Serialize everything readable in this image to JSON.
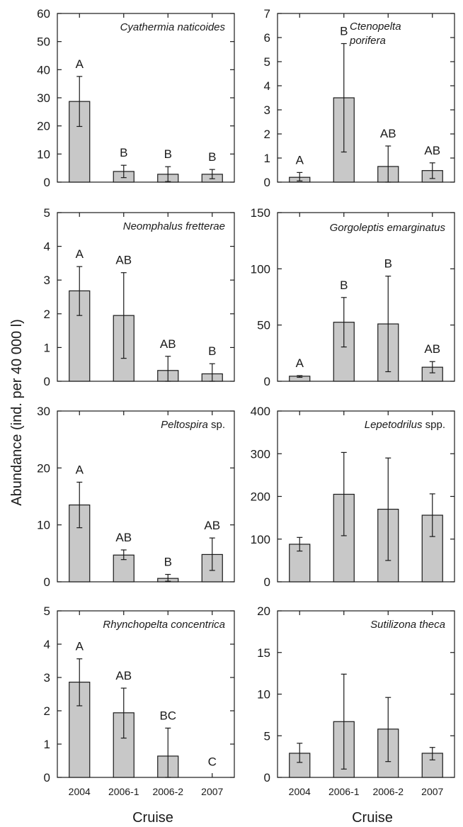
{
  "figure": {
    "ylabel": "Abundance (ind. per 40 000 l)",
    "xlabel": "Cruise"
  },
  "colors": {
    "bar_fill": "#c8c8c8",
    "stroke": "#1a1a1a"
  },
  "chart_data": [
    {
      "type": "bar",
      "title": "Cyathermia naticoides",
      "title_parts": [
        {
          "text": "Cyathermia naticoides",
          "italic": true
        }
      ],
      "categories": [
        "2004",
        "2006-1",
        "2006-2",
        "2007"
      ],
      "values": [
        28.7,
        3.8,
        2.8,
        2.8
      ],
      "err_low": [
        19.8,
        1.6,
        0.2,
        1.2
      ],
      "err_high": [
        37.6,
        6.0,
        5.5,
        4.5
      ],
      "sig_letters": [
        "A",
        "B",
        "B",
        "B"
      ],
      "ylim": [
        0,
        60
      ],
      "yticks": [
        0,
        10,
        20,
        30,
        40,
        50,
        60
      ]
    },
    {
      "type": "bar",
      "title": "Ctenopelta porifera",
      "title_parts": [
        {
          "text": "Ctenopelta",
          "italic": true
        },
        {
          "text": "porifera",
          "italic": true
        }
      ],
      "categories": [
        "2004",
        "2006-1",
        "2006-2",
        "2007"
      ],
      "values": [
        0.2,
        3.5,
        0.65,
        0.48
      ],
      "err_low": [
        0.05,
        1.25,
        0.0,
        0.15
      ],
      "err_high": [
        0.4,
        5.75,
        1.5,
        0.8
      ],
      "sig_letters": [
        "A",
        "B",
        "AB",
        "AB"
      ],
      "ylim": [
        0,
        7
      ],
      "yticks": [
        0,
        1,
        2,
        3,
        4,
        5,
        6,
        7
      ]
    },
    {
      "type": "bar",
      "title": "Neomphalus fretterae",
      "title_parts": [
        {
          "text": "Neomphalus fretterae",
          "italic": true
        }
      ],
      "categories": [
        "2004",
        "2006-1",
        "2006-2",
        "2007"
      ],
      "values": [
        2.68,
        1.95,
        0.32,
        0.22
      ],
      "err_low": [
        1.95,
        0.68,
        0.0,
        0.0
      ],
      "err_high": [
        3.4,
        3.22,
        0.74,
        0.52
      ],
      "sig_letters": [
        "A",
        "AB",
        "AB",
        "B"
      ],
      "ylim": [
        0,
        5
      ],
      "yticks": [
        0,
        1,
        2,
        3,
        4,
        5
      ]
    },
    {
      "type": "bar",
      "title": "Gorgoleptis emarginatus",
      "title_parts": [
        {
          "text": "Gorgoleptis emarginatus",
          "italic": true
        }
      ],
      "categories": [
        "2004",
        "2006-1",
        "2006-2",
        "2007"
      ],
      "values": [
        4.5,
        52.5,
        51.0,
        12.5
      ],
      "err_low": [
        3.5,
        30.5,
        8.5,
        7.5
      ],
      "err_high": [
        5.0,
        74.5,
        93.5,
        17.5
      ],
      "sig_letters": [
        "A",
        "B",
        "B",
        "AB"
      ],
      "ylim": [
        0,
        150
      ],
      "yticks": [
        0,
        50,
        100,
        150
      ]
    },
    {
      "type": "bar",
      "title": "Peltospira sp.",
      "title_parts": [
        {
          "text": "Peltospira",
          "italic": true
        },
        {
          "text": " sp.",
          "italic": false
        }
      ],
      "categories": [
        "2004",
        "2006-1",
        "2006-2",
        "2007"
      ],
      "values": [
        13.5,
        4.7,
        0.6,
        4.8
      ],
      "err_low": [
        9.5,
        3.9,
        0.1,
        2.0
      ],
      "err_high": [
        17.5,
        5.6,
        1.3,
        7.7
      ],
      "sig_letters": [
        "A",
        "AB",
        "B",
        "AB"
      ],
      "ylim": [
        0,
        30
      ],
      "yticks": [
        0,
        10,
        20,
        30
      ]
    },
    {
      "type": "bar",
      "title": "Lepetodrilus spp.",
      "title_parts": [
        {
          "text": "Lepetodrilus",
          "italic": true
        },
        {
          "text": " spp.",
          "italic": false
        }
      ],
      "categories": [
        "2004",
        "2006-1",
        "2006-2",
        "2007"
      ],
      "values": [
        88,
        205,
        170,
        156
      ],
      "err_low": [
        72,
        108,
        50,
        106
      ],
      "err_high": [
        104,
        303,
        290,
        206
      ],
      "sig_letters": [
        "",
        "",
        "",
        ""
      ],
      "ylim": [
        0,
        400
      ],
      "yticks": [
        0,
        100,
        200,
        300,
        400
      ]
    },
    {
      "type": "bar",
      "title": "Rhynchopelta concentrica",
      "title_parts": [
        {
          "text": "Rhynchopelta concentrica",
          "italic": true
        }
      ],
      "categories": [
        "2004",
        "2006-1",
        "2006-2",
        "2007"
      ],
      "values": [
        2.86,
        1.94,
        0.64,
        0.0
      ],
      "err_low": [
        2.15,
        1.18,
        0.0,
        null
      ],
      "err_high": [
        3.56,
        2.68,
        1.48,
        null
      ],
      "sig_letters": [
        "A",
        "AB",
        "BC",
        "C"
      ],
      "ylim": [
        0,
        5
      ],
      "yticks": [
        0,
        1,
        2,
        3,
        4,
        5
      ]
    },
    {
      "type": "bar",
      "title": "Sutilizona theca",
      "title_parts": [
        {
          "text": "Sutilizona theca",
          "italic": true
        }
      ],
      "categories": [
        "2004",
        "2006-1",
        "2006-2",
        "2007"
      ],
      "values": [
        2.9,
        6.7,
        5.8,
        2.9
      ],
      "err_low": [
        1.8,
        1.0,
        1.9,
        2.1
      ],
      "err_high": [
        4.1,
        12.4,
        9.6,
        3.6
      ],
      "sig_letters": [
        "",
        "",
        "",
        ""
      ],
      "ylim": [
        0,
        20
      ],
      "yticks": [
        0,
        5,
        10,
        15,
        20
      ]
    }
  ]
}
